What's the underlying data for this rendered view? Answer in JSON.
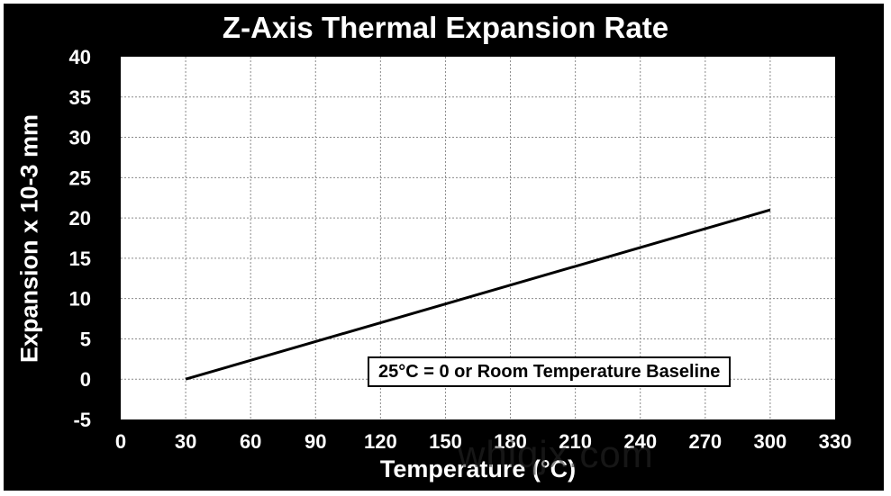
{
  "chart_data": {
    "type": "line",
    "title": "Z-Axis Thermal Expansion Rate",
    "xlabel": "Temperature (°C)",
    "ylabel": "Expansion x 10-3 mm",
    "xlim": [
      0,
      330
    ],
    "ylim": [
      -5,
      40
    ],
    "x_ticks": [
      0,
      30,
      60,
      90,
      120,
      150,
      180,
      210,
      240,
      270,
      300,
      330
    ],
    "y_ticks": [
      -5,
      0,
      5,
      10,
      15,
      20,
      25,
      30,
      35,
      40
    ],
    "grid": true,
    "series": [
      {
        "x": [
          30,
          300
        ],
        "y": [
          0,
          21
        ]
      }
    ],
    "annotation": "25°C = 0 or Room Temperature Baseline",
    "colors": {
      "background": "#000000",
      "plot": "#ffffff",
      "line": "#000000",
      "grid": "#8a8a8a",
      "text": "#ffffff"
    }
  },
  "watermark": "whiqjx.com"
}
